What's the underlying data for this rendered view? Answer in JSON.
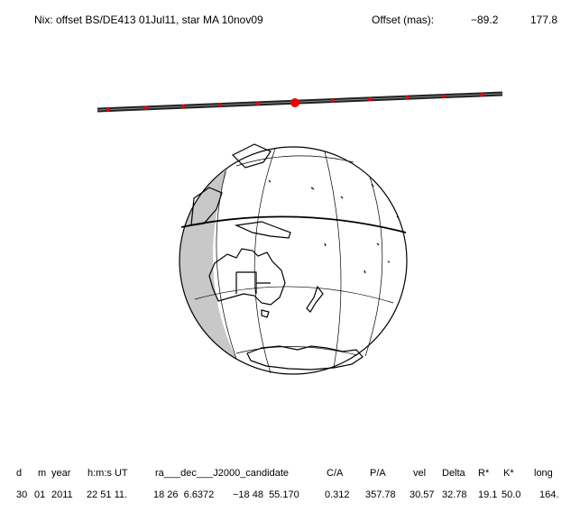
{
  "header": {
    "title": "Nix: offset BS/DE413 01Jul11, star MA 10nov09",
    "offset_label": "Offset (mas):",
    "offset_values": [
      "−89.2",
      "177.8"
    ]
  },
  "table": {
    "headers": [
      "d",
      "m",
      "year",
      "h:m:s UT",
      "ra___dec___J2000_candidate",
      "C/A",
      "P/A",
      "vel",
      "Delta",
      "R*",
      "K*",
      "long"
    ],
    "row": [
      "30",
      "01",
      "2011",
      "22 51 11.",
      "18 26  6.6372",
      "−18 48  55.170",
      "0.312",
      "357.78",
      "30.57",
      "32.78",
      "19.1",
      "50.0",
      "164."
    ]
  }
}
